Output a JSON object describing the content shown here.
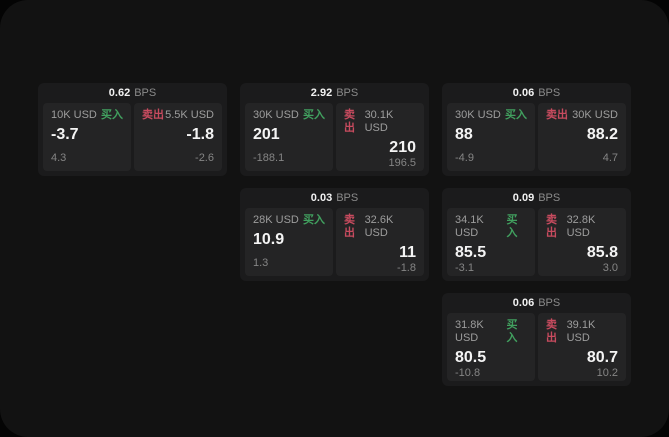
{
  "colors": {
    "buy_accent": "#41a05f",
    "sell_accent": "#c84b5f",
    "background": "#121212",
    "card_background": "#1b1b1c",
    "panel_background": "#242425"
  },
  "cards": [
    {
      "bps_value": "0.62",
      "bps_unit": "BPS",
      "grid": {
        "row": 1,
        "col": 1
      },
      "buy": {
        "amount": "10K USD",
        "side_label": "买入",
        "value": "-3.7",
        "sub_value": "4.3"
      },
      "sell": {
        "amount": "5.5K USD",
        "side_label": "卖出",
        "value": "-1.8",
        "sub_value": "-2.6"
      }
    },
    {
      "bps_value": "2.92",
      "bps_unit": "BPS",
      "grid": {
        "row": 1,
        "col": 2
      },
      "buy": {
        "amount": "30K USD",
        "side_label": "买入",
        "value": "201",
        "sub_value": "-188.1"
      },
      "sell": {
        "amount": "30.1K USD",
        "side_label": "卖出",
        "value": "210",
        "sub_value": "196.5"
      }
    },
    {
      "bps_value": "0.06",
      "bps_unit": "BPS",
      "grid": {
        "row": 1,
        "col": 3
      },
      "buy": {
        "amount": "30K USD",
        "side_label": "买入",
        "value": "88",
        "sub_value": "-4.9"
      },
      "sell": {
        "amount": "30K USD",
        "side_label": "卖出",
        "value": "88.2",
        "sub_value": "4.7"
      }
    },
    {
      "bps_value": "0.03",
      "bps_unit": "BPS",
      "grid": {
        "row": 2,
        "col": 2
      },
      "buy": {
        "amount": "28K USD",
        "side_label": "买入",
        "value": "10.9",
        "sub_value": "1.3"
      },
      "sell": {
        "amount": "32.6K USD",
        "side_label": "卖出",
        "value": "11",
        "sub_value": "-1.8"
      }
    },
    {
      "bps_value": "0.09",
      "bps_unit": "BPS",
      "grid": {
        "row": 2,
        "col": 3
      },
      "buy": {
        "amount": "34.1K USD",
        "side_label": "买入",
        "value": "85.5",
        "sub_value": "-3.1"
      },
      "sell": {
        "amount": "32.8K USD",
        "side_label": "卖出",
        "value": "85.8",
        "sub_value": "3.0"
      }
    },
    {
      "bps_value": "0.06",
      "bps_unit": "BPS",
      "grid": {
        "row": 3,
        "col": 3
      },
      "buy": {
        "amount": "31.8K USD",
        "side_label": "买入",
        "value": "80.5",
        "sub_value": "-10.8"
      },
      "sell": {
        "amount": "39.1K USD",
        "side_label": "卖出",
        "value": "80.7",
        "sub_value": "10.2"
      }
    }
  ]
}
